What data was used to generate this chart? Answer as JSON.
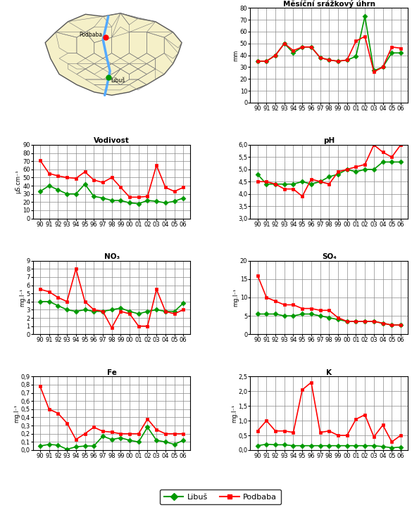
{
  "xlabel_ticks": [
    "90",
    "91",
    "92",
    "93",
    "94",
    "95",
    "96",
    "97",
    "98",
    "99",
    "00",
    "01",
    "02",
    "03",
    "04",
    "05",
    "06"
  ],
  "rain_libus": [
    35,
    35,
    40,
    50,
    42,
    47,
    47,
    38,
    36,
    35,
    36,
    39,
    73,
    27,
    30,
    42,
    42
  ],
  "rain_podbaba": [
    35,
    35,
    40,
    50,
    44,
    47,
    47,
    38,
    36,
    35,
    36,
    52,
    56,
    26,
    30,
    47,
    46
  ],
  "vodivost_libus": [
    33,
    40,
    35,
    30,
    30,
    42,
    27,
    25,
    22,
    22,
    19,
    18,
    22,
    21,
    19,
    21,
    25
  ],
  "vodivost_podbaba": [
    71,
    55,
    52,
    50,
    49,
    57,
    47,
    44,
    50,
    38,
    26,
    26,
    27,
    65,
    38,
    33,
    38
  ],
  "ph_libus": [
    4.8,
    4.4,
    4.4,
    4.4,
    4.4,
    4.5,
    4.4,
    4.5,
    4.7,
    4.8,
    5.0,
    4.9,
    5.0,
    5.0,
    5.3,
    5.3,
    5.3
  ],
  "ph_podbaba": [
    4.5,
    4.5,
    4.4,
    4.2,
    4.2,
    3.9,
    4.6,
    4.5,
    4.4,
    4.9,
    5.0,
    5.1,
    5.2,
    6.0,
    5.7,
    5.5,
    6.0
  ],
  "no3_libus": [
    4.0,
    4.0,
    3.5,
    3.0,
    2.8,
    3.0,
    2.8,
    2.8,
    3.0,
    3.2,
    2.8,
    2.5,
    2.8,
    3.0,
    2.8,
    2.8,
    3.8
  ],
  "no3_podbaba": [
    5.5,
    5.2,
    4.5,
    4.0,
    8.0,
    4.0,
    3.0,
    2.8,
    0.8,
    2.8,
    2.5,
    1.0,
    1.0,
    5.5,
    2.8,
    2.5,
    3.0
  ],
  "so4_libus": [
    5.5,
    5.5,
    5.5,
    5.0,
    5.0,
    5.5,
    5.5,
    5.0,
    4.5,
    4.0,
    3.5,
    3.5,
    3.5,
    3.5,
    3.0,
    2.5,
    2.5
  ],
  "so4_podbaba": [
    16.0,
    10.0,
    9.0,
    8.0,
    8.0,
    7.0,
    7.0,
    6.5,
    6.5,
    4.5,
    3.5,
    3.5,
    3.5,
    3.5,
    3.0,
    2.5,
    2.5
  ],
  "fe_libus": [
    0.05,
    0.07,
    0.06,
    0.01,
    0.04,
    0.05,
    0.05,
    0.17,
    0.13,
    0.15,
    0.12,
    0.1,
    0.28,
    0.12,
    0.1,
    0.07,
    0.12
  ],
  "fe_podbaba": [
    0.78,
    0.5,
    0.45,
    0.33,
    0.13,
    0.2,
    0.28,
    0.23,
    0.22,
    0.2,
    0.2,
    0.2,
    0.38,
    0.25,
    0.2,
    0.2,
    0.2
  ],
  "k_libus": [
    0.15,
    0.2,
    0.18,
    0.18,
    0.15,
    0.15,
    0.15,
    0.15,
    0.15,
    0.15,
    0.15,
    0.15,
    0.15,
    0.15,
    0.12,
    0.08,
    0.1
  ],
  "k_podbaba": [
    0.65,
    1.0,
    0.65,
    0.65,
    0.6,
    2.05,
    2.3,
    0.6,
    0.65,
    0.5,
    0.5,
    1.05,
    1.2,
    0.45,
    0.85,
    0.28,
    0.5
  ],
  "color_libus": "#009900",
  "color_podbaba": "#ff0000",
  "marker_libus": "D",
  "marker_podbaba": "s",
  "markersize": 3.5,
  "linewidth": 1.2
}
